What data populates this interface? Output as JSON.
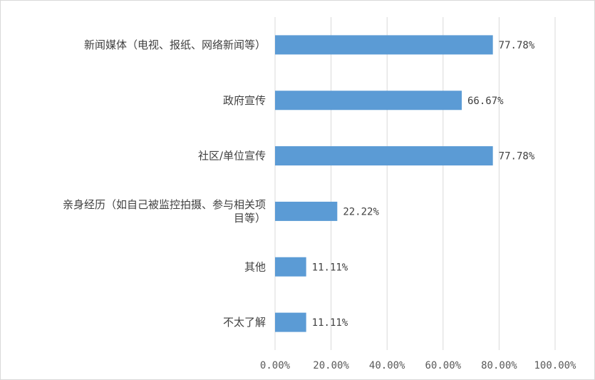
{
  "chart_data": {
    "type": "bar",
    "orientation": "horizontal",
    "categories": [
      "新闻媒体（电视、报纸、网络新闻等）",
      "政府宣传",
      "社区/单位宣传",
      "亲身经历（如自己被监控拍摄、参与相关项目等）",
      "其他",
      "不太了解"
    ],
    "category_label_lines": [
      [
        "新闻媒体（电视、报纸、网络新闻等）"
      ],
      [
        "政府宣传"
      ],
      [
        "社区/单位宣传"
      ],
      [
        "亲身经历（如自己被监控拍摄、参与相关项",
        "目等）"
      ],
      [
        "其他"
      ],
      [
        "不太了解"
      ]
    ],
    "values": [
      77.78,
      66.67,
      77.78,
      22.22,
      11.11,
      11.11
    ],
    "data_labels": [
      "77.78%",
      "66.67%",
      "77.78%",
      "22.22%",
      "11.11%",
      "11.11%"
    ],
    "xlim": [
      0,
      100
    ],
    "x_ticks": [
      0,
      20,
      40,
      60,
      80,
      100
    ],
    "x_tick_labels": [
      "0.00%",
      "20.00%",
      "40.00%",
      "60.00%",
      "80.00%",
      "100.00%"
    ],
    "title": "",
    "xlabel": "",
    "ylabel": "",
    "grid": "vertical",
    "legend": "none",
    "bar_color": "#5b9bd5"
  }
}
